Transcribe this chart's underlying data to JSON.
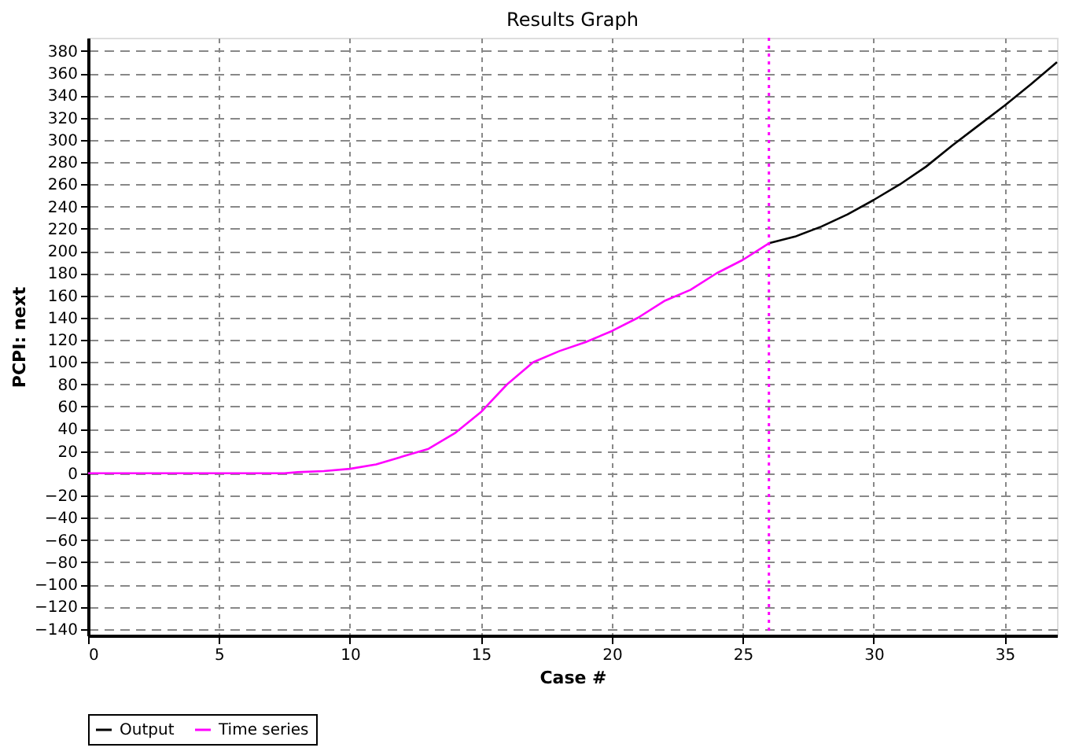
{
  "chart_data": {
    "type": "line",
    "title": "Results Graph",
    "xlabel": "Case #",
    "ylabel": "PCPI: next",
    "xlim": [
      0,
      37
    ],
    "ylim": [
      -146,
      392
    ],
    "xticks": [
      0,
      5,
      10,
      15,
      20,
      25,
      30,
      35
    ],
    "yticks": [
      -140,
      -120,
      -100,
      -80,
      -60,
      -40,
      -20,
      0,
      20,
      40,
      60,
      80,
      100,
      120,
      140,
      160,
      180,
      200,
      220,
      240,
      260,
      280,
      300,
      320,
      340,
      360,
      380
    ],
    "series": [
      {
        "name": "Output",
        "color": "#000000",
        "x": [
          26,
          27,
          28,
          29,
          30,
          31,
          32,
          33,
          34,
          35,
          36,
          37
        ],
        "values": [
          207,
          213,
          222,
          233,
          246,
          260,
          276,
          295,
          313,
          331,
          350,
          370
        ]
      },
      {
        "name": "Time series",
        "color": "#ff00ff",
        "x": [
          0,
          7.5,
          8,
          9,
          10,
          11,
          12,
          13,
          14,
          15,
          16,
          17,
          18,
          19,
          20,
          21,
          22,
          23,
          24,
          25,
          26
        ],
        "values": [
          0,
          0,
          1,
          2,
          4,
          8,
          15,
          22,
          36,
          55,
          80,
          100,
          110,
          118,
          128,
          140,
          155,
          165,
          180,
          192,
          207
        ]
      }
    ],
    "ref_lines": [
      {
        "axis": "x",
        "value": 26,
        "color": "#ff00ff",
        "line_style": "dotted"
      }
    ],
    "grid": true,
    "legend": "bottom",
    "line_style": "solid",
    "marker": "none"
  }
}
